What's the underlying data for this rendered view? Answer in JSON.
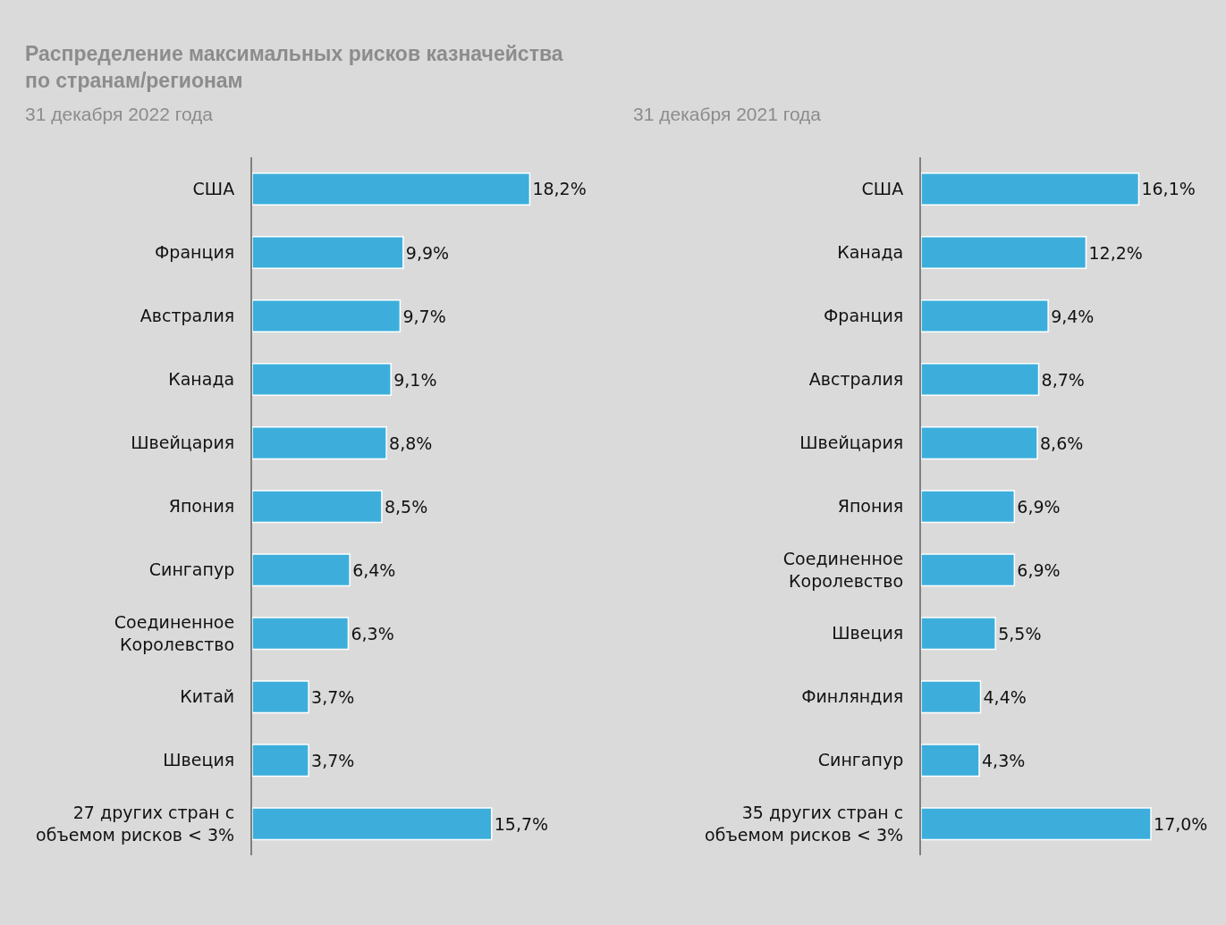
{
  "chart_data": [
    {
      "type": "bar",
      "orientation": "horizontal",
      "title": "Распределение максимальных рисков казначейства по странам/регионам",
      "subtitle": "31 декабря 2022 года",
      "categories": [
        "США",
        "Франция",
        "Австралия",
        "Канада",
        "Швейцария",
        "Япония",
        "Сингапур",
        "Соединенное Королевство",
        "Китай",
        "Швеция",
        "27 других стран с объемом рисков < 3%"
      ],
      "values": [
        18.2,
        9.9,
        9.7,
        9.1,
        8.8,
        8.5,
        6.4,
        6.3,
        3.7,
        3.7,
        15.7
      ],
      "value_labels": [
        "18,2%",
        "9,9%",
        "9,7%",
        "9,1%",
        "8,8%",
        "8,5%",
        "6,4%",
        "6,3%",
        "3,7%",
        "3,7%",
        "15,7%"
      ],
      "color": "#3daedb"
    },
    {
      "type": "bar",
      "orientation": "horizontal",
      "subtitle": "31 декабря 2021 года",
      "categories": [
        "США",
        "Канада",
        "Франция",
        "Австралия",
        "Швейцария",
        "Япония",
        "Соединенное Королевство",
        "Швеция",
        "Финляндия",
        "Сингапур",
        "35 других стран с объемом рисков < 3%"
      ],
      "values": [
        16.1,
        12.2,
        9.4,
        8.7,
        8.6,
        6.9,
        6.9,
        5.5,
        4.4,
        4.3,
        17.0
      ],
      "value_labels": [
        "16,1%",
        "12,2%",
        "9,4%",
        "8,7%",
        "8,6%",
        "6,9%",
        "6,9%",
        "5,5%",
        "4,4%",
        "4,3%",
        "17,0%"
      ],
      "color": "#3daedb"
    }
  ]
}
